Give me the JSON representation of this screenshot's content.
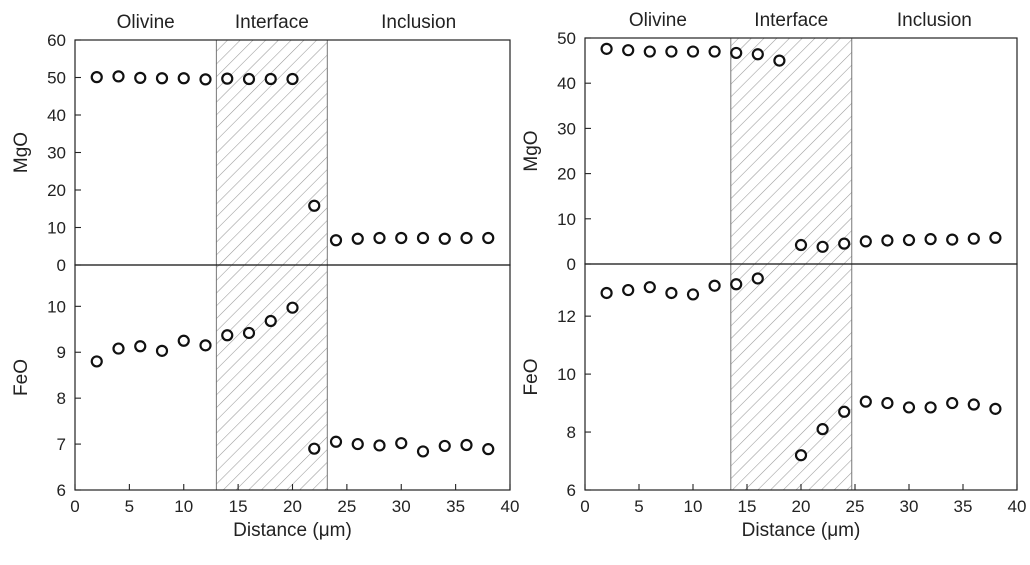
{
  "chart_data": [
    {
      "type": "scatter",
      "title": "",
      "regions": [
        {
          "name": "Olivine",
          "x_range": [
            0,
            13
          ]
        },
        {
          "name": "Interface",
          "x_range": [
            13,
            23.2
          ],
          "hatched": true
        },
        {
          "name": "Inclusion",
          "x_range": [
            23.2,
            40
          ]
        }
      ],
      "xlabel": "Distance (μm)",
      "xlim": [
        0,
        40
      ],
      "xticks": [
        0,
        5,
        10,
        15,
        20,
        25,
        30,
        35,
        40
      ],
      "panels": [
        {
          "ylabel": "MgO",
          "ylim": [
            0,
            60
          ],
          "yticks": [
            0,
            10,
            20,
            30,
            40,
            50,
            60
          ],
          "x": [
            2,
            4,
            6,
            8,
            10,
            12,
            14,
            16,
            18,
            20,
            22,
            24,
            26,
            28,
            30,
            32,
            34,
            36,
            38
          ],
          "y": [
            50.1,
            50.3,
            49.9,
            49.8,
            49.8,
            49.5,
            49.7,
            49.6,
            49.6,
            49.6,
            15.8,
            6.6,
            7.0,
            7.2,
            7.2,
            7.2,
            7.0,
            7.2,
            7.2
          ]
        },
        {
          "ylabel": "FeO",
          "ylim": [
            6,
            10.9
          ],
          "yticks": [
            6,
            7,
            8,
            9,
            10
          ],
          "x": [
            2,
            4,
            6,
            8,
            10,
            12,
            14,
            16,
            18,
            20,
            22,
            24,
            26,
            28,
            30,
            32,
            34,
            36,
            38
          ],
          "y": [
            8.8,
            9.08,
            9.13,
            9.03,
            9.25,
            9.15,
            9.37,
            9.42,
            9.68,
            9.97,
            6.9,
            7.05,
            7.0,
            6.97,
            7.02,
            6.84,
            6.96,
            6.98,
            6.89
          ]
        }
      ]
    },
    {
      "type": "scatter",
      "title": "",
      "regions": [
        {
          "name": "Olivine",
          "x_range": [
            0,
            13.5
          ]
        },
        {
          "name": "Interface",
          "x_range": [
            13.5,
            24.7
          ],
          "hatched": true
        },
        {
          "name": "Inclusion",
          "x_range": [
            24.7,
            40
          ]
        }
      ],
      "xlabel": "Distance (μm)",
      "xlim": [
        0,
        40
      ],
      "xticks": [
        0,
        5,
        10,
        15,
        20,
        25,
        30,
        35,
        40
      ],
      "panels": [
        {
          "ylabel": "MgO",
          "ylim": [
            0,
            50
          ],
          "yticks": [
            0,
            10,
            20,
            30,
            40,
            50
          ],
          "x": [
            2,
            4,
            6,
            8,
            10,
            12,
            14,
            16,
            18,
            20,
            22,
            24,
            26,
            28,
            30,
            32,
            34,
            36,
            38
          ],
          "y": [
            47.6,
            47.3,
            47.0,
            47.0,
            47.0,
            47.0,
            46.7,
            46.4,
            45.0,
            4.2,
            3.8,
            4.5,
            5.0,
            5.2,
            5.3,
            5.5,
            5.4,
            5.6,
            5.8
          ]
        },
        {
          "ylabel": "FeO",
          "ylim": [
            6,
            13.8
          ],
          "yticks": [
            6,
            8,
            10,
            12
          ],
          "x": [
            2,
            4,
            6,
            8,
            10,
            12,
            14,
            16,
            20,
            22,
            24,
            26,
            28,
            30,
            32,
            34,
            36,
            38
          ],
          "y": [
            12.8,
            12.9,
            13.0,
            12.8,
            12.75,
            13.05,
            13.1,
            13.3,
            7.2,
            8.1,
            8.7,
            9.05,
            9.0,
            8.85,
            8.85,
            9.0,
            8.95,
            8.8
          ]
        }
      ]
    }
  ]
}
